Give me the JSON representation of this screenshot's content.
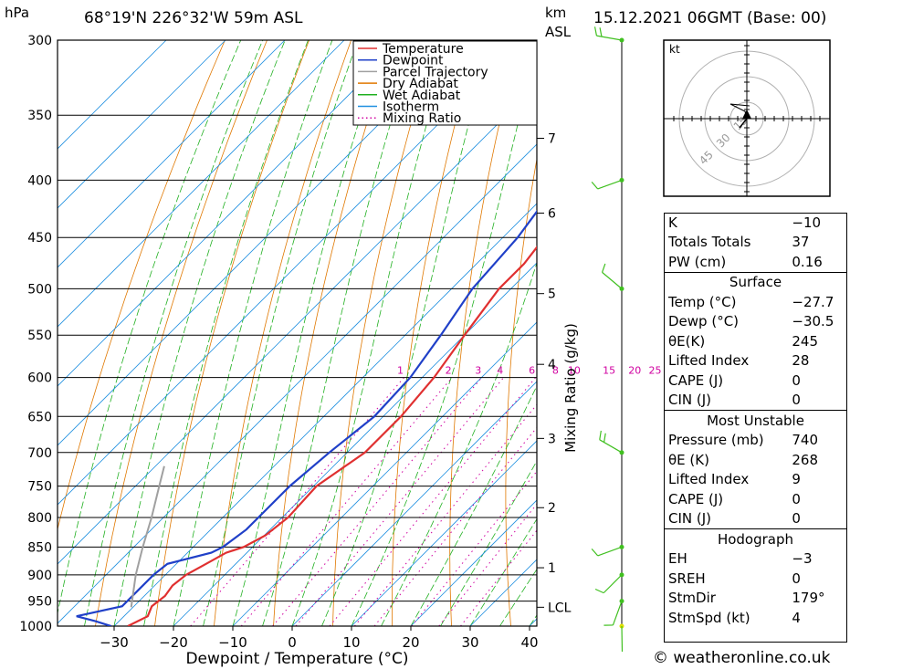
{
  "header": {
    "hpa_label": "hPa",
    "location": "68°19'N  226°32'W  59m  ASL",
    "km_label": "km",
    "asl_label": "ASL",
    "datetime": "15.12.2021  06GMT  (Base: 00)"
  },
  "footer": {
    "credit": "© weatheronline.co.uk"
  },
  "chart_data": {
    "type": "line",
    "title": "",
    "xlabel": "Dewpoint / Temperature (°C)",
    "ylabel": "hPa",
    "right_axis_label": "Mixing Ratio (g/kg)",
    "pressure_levels": [
      300,
      350,
      400,
      450,
      500,
      550,
      600,
      650,
      700,
      750,
      800,
      850,
      900,
      950,
      1000
    ],
    "temperature_ticks": [
      -30,
      -20,
      -10,
      0,
      10,
      20,
      30,
      40
    ],
    "xlim": [
      -40,
      40
    ],
    "ylim": [
      1000,
      300
    ],
    "km_ticks": [
      {
        "label": "7",
        "pressure": 367
      },
      {
        "label": "6",
        "pressure": 428
      },
      {
        "label": "5",
        "pressure": 505
      },
      {
        "label": "4",
        "pressure": 584
      },
      {
        "label": "3",
        "pressure": 680
      },
      {
        "label": "2",
        "pressure": 784
      },
      {
        "label": "1",
        "pressure": 887
      },
      {
        "label": "LCL",
        "pressure": 962
      }
    ],
    "mixing_ratio_labels": [
      "1",
      "2",
      "3",
      "4",
      "6",
      "8",
      "10",
      "15",
      "20",
      "25"
    ],
    "legend": {
      "position": "top-right",
      "entries": [
        {
          "label": "Temperature",
          "color": "#e03030",
          "style": "solid"
        },
        {
          "label": "Dewpoint",
          "color": "#2040c8",
          "style": "solid"
        },
        {
          "label": "Parcel Trajectory",
          "color": "#a0a0a0",
          "style": "solid"
        },
        {
          "label": "Dry Adiabat",
          "color": "#e07800",
          "style": "solid"
        },
        {
          "label": "Wet Adiabat",
          "color": "#20b020",
          "style": "solid"
        },
        {
          "label": "Isotherm",
          "color": "#2090e0",
          "style": "solid"
        },
        {
          "label": "Mixing Ratio",
          "color": "#d000a0",
          "style": "dotted"
        }
      ]
    },
    "series": [
      {
        "name": "Temperature",
        "color": "#e03030",
        "points": [
          [
            1000,
            -27.7
          ],
          [
            980,
            -26
          ],
          [
            960,
            -27
          ],
          [
            940,
            -26.5
          ],
          [
            920,
            -27
          ],
          [
            900,
            -26.5
          ],
          [
            880,
            -25
          ],
          [
            860,
            -23.5
          ],
          [
            850,
            -21.5
          ],
          [
            830,
            -19.8
          ],
          [
            800,
            -19
          ],
          [
            750,
            -19.5
          ],
          [
            700,
            -17
          ],
          [
            650,
            -17
          ],
          [
            600,
            -18
          ],
          [
            550,
            -20
          ],
          [
            500,
            -22
          ],
          [
            475,
            -22
          ],
          [
            450,
            -23
          ],
          [
            400,
            -25
          ],
          [
            350,
            -27
          ],
          [
            300,
            -28.5
          ]
        ]
      },
      {
        "name": "Dewpoint",
        "color": "#2040c8",
        "points": [
          [
            1000,
            -30.5
          ],
          [
            990,
            -34
          ],
          [
            980,
            -38
          ],
          [
            960,
            -32
          ],
          [
            950,
            -32
          ],
          [
            930,
            -32
          ],
          [
            900,
            -32
          ],
          [
            880,
            -31.5
          ],
          [
            860,
            -26
          ],
          [
            850,
            -25
          ],
          [
            820,
            -24
          ],
          [
            800,
            -24
          ],
          [
            750,
            -24
          ],
          [
            700,
            -23
          ],
          [
            650,
            -21.5
          ],
          [
            600,
            -22
          ],
          [
            550,
            -24
          ],
          [
            500,
            -26.5
          ],
          [
            450,
            -27.5
          ],
          [
            400,
            -30
          ],
          [
            350,
            -32
          ],
          [
            300,
            -33
          ]
        ]
      },
      {
        "name": "Parcel Trajectory",
        "color": "#a0a0a0",
        "points": [
          [
            962,
            -30.3
          ],
          [
            900,
            -35
          ],
          [
            850,
            -38.5
          ],
          [
            800,
            -42
          ],
          [
            750,
            -46
          ],
          [
            720,
            -48.5
          ]
        ]
      }
    ]
  },
  "hodograph": {
    "unit_label": "kt",
    "ring_labels": [
      "15",
      "30",
      "45"
    ]
  },
  "wind_barbs": [
    {
      "pressure": 1000,
      "direction": 179,
      "speed": 4
    },
    {
      "pressure": 950,
      "direction": 200,
      "speed": 5
    },
    {
      "pressure": 900,
      "direction": 225,
      "speed": 10
    },
    {
      "pressure": 850,
      "direction": 250,
      "speed": 10
    },
    {
      "pressure": 700,
      "direction": 300,
      "speed": 15
    },
    {
      "pressure": 500,
      "direction": 310,
      "speed": 10
    },
    {
      "pressure": 400,
      "direction": 250,
      "speed": 10
    },
    {
      "pressure": 300,
      "direction": 280,
      "speed": 20
    }
  ],
  "indices": {
    "general": [
      {
        "label": "K",
        "value": "-10"
      },
      {
        "label": "Totals Totals",
        "value": "37"
      },
      {
        "label": "PW (cm)",
        "value": "0.16"
      }
    ],
    "surface_title": "Surface",
    "surface": [
      {
        "label": "Temp (°C)",
        "value": "-27.7"
      },
      {
        "label": "Dewp (°C)",
        "value": "-30.5"
      },
      {
        "label": "θE(K)",
        "value": "245"
      },
      {
        "label": "Lifted Index",
        "value": "28"
      },
      {
        "label": "CAPE (J)",
        "value": "0"
      },
      {
        "label": "CIN (J)",
        "value": "0"
      }
    ],
    "most_unstable_title": "Most Unstable",
    "most_unstable": [
      {
        "label": "Pressure (mb)",
        "value": "740"
      },
      {
        "label": "θE (K)",
        "value": "268"
      },
      {
        "label": "Lifted Index",
        "value": "9"
      },
      {
        "label": "CAPE (J)",
        "value": "0"
      },
      {
        "label": "CIN (J)",
        "value": "0"
      }
    ],
    "hodograph_title": "Hodograph",
    "hodograph": [
      {
        "label": "EH",
        "value": "-3"
      },
      {
        "label": "SREH",
        "value": "0"
      },
      {
        "label": "StmDir",
        "value": "179°"
      },
      {
        "label": "StmSpd (kt)",
        "value": "4"
      }
    ]
  }
}
